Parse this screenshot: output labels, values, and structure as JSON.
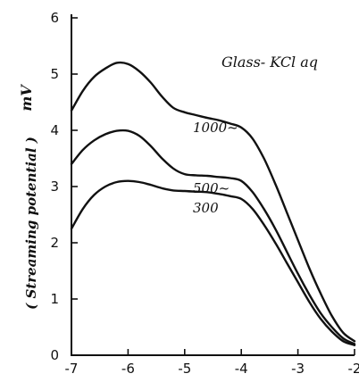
{
  "chart_data": {
    "type": "line",
    "ylabel": "( Streaming potential )",
    "yunit": "mV",
    "annotation": "Glass- KCl aq",
    "xlim": [
      -7,
      -2
    ],
    "ylim": [
      0,
      6
    ],
    "xticks": [
      "-7",
      "-6",
      "-5",
      "-4",
      "-3",
      "-2"
    ],
    "yticks": [
      "0",
      "1",
      "2",
      "3",
      "4",
      "5",
      "6"
    ],
    "series": [
      {
        "name": "1000~",
        "x": [
          -7,
          -6.8,
          -6.6,
          -6.4,
          -6.2,
          -6.0,
          -5.8,
          -5.6,
          -5.4,
          -5.2,
          -5.0,
          -4.8,
          -4.6,
          -4.4,
          -4.2,
          -4.0,
          -3.8,
          -3.6,
          -3.4,
          -3.2,
          -3.0,
          -2.8,
          -2.6,
          -2.4,
          -2.2,
          -2.0
        ],
        "values": [
          4.35,
          4.7,
          4.95,
          5.1,
          5.2,
          5.18,
          5.05,
          4.85,
          4.6,
          4.4,
          4.32,
          4.27,
          4.22,
          4.18,
          4.12,
          4.05,
          3.85,
          3.5,
          3.05,
          2.55,
          2.05,
          1.55,
          1.1,
          0.7,
          0.4,
          0.25
        ]
      },
      {
        "name": "500~",
        "x": [
          -7,
          -6.8,
          -6.6,
          -6.4,
          -6.2,
          -6.0,
          -5.8,
          -5.6,
          -5.4,
          -5.2,
          -5.0,
          -4.8,
          -4.6,
          -4.4,
          -4.2,
          -4.0,
          -3.8,
          -3.6,
          -3.4,
          -3.2,
          -3.0,
          -2.8,
          -2.6,
          -2.4,
          -2.2,
          -2.0
        ],
        "values": [
          3.4,
          3.65,
          3.82,
          3.93,
          3.99,
          3.99,
          3.9,
          3.72,
          3.5,
          3.32,
          3.22,
          3.2,
          3.19,
          3.17,
          3.15,
          3.1,
          2.9,
          2.6,
          2.25,
          1.85,
          1.45,
          1.08,
          0.75,
          0.5,
          0.3,
          0.2
        ]
      },
      {
        "name": "300",
        "x": [
          -7,
          -6.8,
          -6.6,
          -6.4,
          -6.2,
          -6.0,
          -5.8,
          -5.6,
          -5.4,
          -5.2,
          -5.0,
          -4.8,
          -4.6,
          -4.4,
          -4.2,
          -4.0,
          -3.8,
          -3.6,
          -3.4,
          -3.2,
          -3.0,
          -2.8,
          -2.6,
          -2.4,
          -2.2,
          -2.0
        ],
        "values": [
          2.25,
          2.6,
          2.85,
          3.0,
          3.08,
          3.1,
          3.08,
          3.03,
          2.97,
          2.93,
          2.92,
          2.91,
          2.9,
          2.87,
          2.83,
          2.78,
          2.6,
          2.32,
          2.0,
          1.65,
          1.3,
          0.95,
          0.65,
          0.42,
          0.25,
          0.18
        ]
      }
    ]
  }
}
